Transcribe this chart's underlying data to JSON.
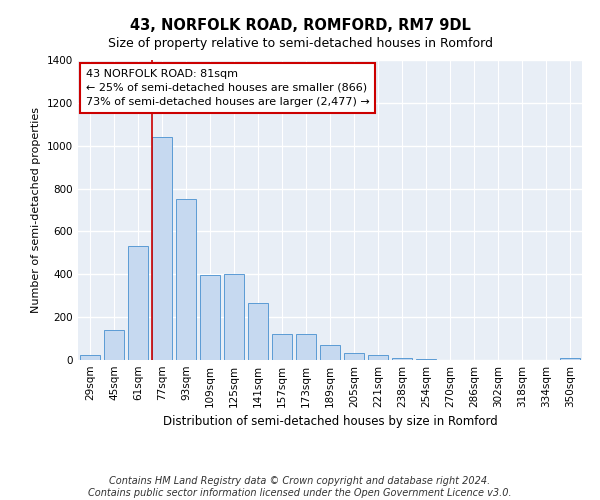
{
  "title": "43, NORFOLK ROAD, ROMFORD, RM7 9DL",
  "subtitle": "Size of property relative to semi-detached houses in Romford",
  "xlabel": "Distribution of semi-detached houses by size in Romford",
  "ylabel": "Number of semi-detached properties",
  "categories": [
    "29sqm",
    "45sqm",
    "61sqm",
    "77sqm",
    "93sqm",
    "109sqm",
    "125sqm",
    "141sqm",
    "157sqm",
    "173sqm",
    "189sqm",
    "205sqm",
    "221sqm",
    "238sqm",
    "254sqm",
    "270sqm",
    "286sqm",
    "302sqm",
    "318sqm",
    "334sqm",
    "350sqm"
  ],
  "values": [
    25,
    140,
    530,
    1040,
    750,
    395,
    400,
    265,
    120,
    120,
    70,
    35,
    25,
    10,
    5,
    2,
    1,
    0,
    0,
    0,
    10
  ],
  "bar_color": "#c6d9f0",
  "bar_edge_color": "#5b9bd5",
  "red_line_index": 3,
  "annotation_line1": "43 NORFOLK ROAD: 81sqm",
  "annotation_line2": "← 25% of semi-detached houses are smaller (866)",
  "annotation_line3": "73% of semi-detached houses are larger (2,477) →",
  "annotation_box_color": "#ffffff",
  "annotation_box_edge": "#cc0000",
  "footer_line1": "Contains HM Land Registry data © Crown copyright and database right 2024.",
  "footer_line2": "Contains public sector information licensed under the Open Government Licence v3.0.",
  "ylim": [
    0,
    1400
  ],
  "yticks": [
    0,
    200,
    400,
    600,
    800,
    1000,
    1200,
    1400
  ],
  "background_color": "#e8eef6",
  "grid_color": "#ffffff",
  "title_fontsize": 10.5,
  "subtitle_fontsize": 9,
  "ylabel_fontsize": 8,
  "xlabel_fontsize": 8.5,
  "tick_fontsize": 7.5,
  "footer_fontsize": 7
}
